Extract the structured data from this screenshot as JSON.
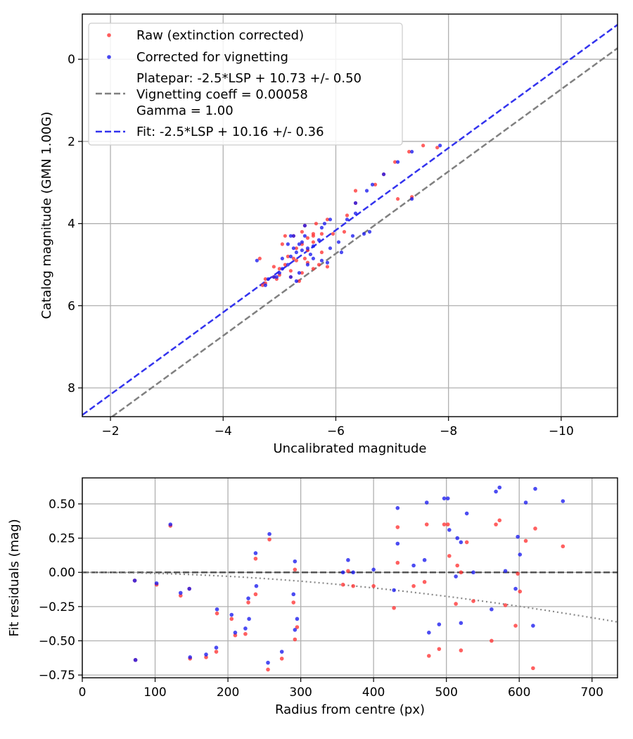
{
  "colors": {
    "raw": "#ff3333",
    "corrected": "#1a1aee",
    "platepar": "#808080",
    "fit": "#3333ee",
    "zero_line": "#555555",
    "model": "#888888"
  },
  "chart_data": [
    {
      "type": "scatter",
      "name": "calibration",
      "xlabel": "Uncalibrated magnitude",
      "ylabel": "Catalog magnitude (GMN 1.00G)",
      "xlim": [
        -1.5,
        -11.0
      ],
      "ylim": [
        8.7,
        -1.1
      ],
      "xticks": [
        -2,
        -4,
        -6,
        -8,
        -10
      ],
      "xtick_labels": [
        "−2",
        "−4",
        "−6",
        "−8",
        "−10"
      ],
      "yticks": [
        0,
        2,
        4,
        6,
        8
      ],
      "ytick_labels": [
        "0",
        "2",
        "4",
        "6",
        "8"
      ],
      "grid": true,
      "legend_position": "top-left",
      "legend": {
        "raw": "Raw (extinction corrected)",
        "corrected": "Corrected for vignetting",
        "platepar_lines": [
          "Platepar: -2.5*LSP + 10.73 +/- 0.50",
          "Vignetting coeff = 0.00058",
          "Gamma = 1.00"
        ],
        "fit": "Fit: -2.5*LSP + 10.16 +/- 0.36"
      },
      "lines": {
        "platepar_offset": 10.73,
        "fit_offset": 10.16
      },
      "series": [
        {
          "name": "Raw (extinction corrected)",
          "points": [
            [
              -7.55,
              2.1
            ],
            [
              -7.8,
              2.15
            ],
            [
              -7.3,
              2.25
            ],
            [
              -7.05,
              2.5
            ],
            [
              -6.85,
              2.8
            ],
            [
              -6.7,
              3.05
            ],
            [
              -6.35,
              3.2
            ],
            [
              -6.35,
              3.5
            ],
            [
              -7.1,
              3.4
            ],
            [
              -7.35,
              3.35
            ],
            [
              -6.2,
              3.8
            ],
            [
              -5.85,
              3.9
            ],
            [
              -5.65,
              4.0
            ],
            [
              -5.45,
              4.05
            ],
            [
              -6.15,
              4.2
            ],
            [
              -5.95,
              4.25
            ],
            [
              -5.75,
              4.25
            ],
            [
              -5.6,
              4.25
            ],
            [
              -5.4,
              4.2
            ],
            [
              -5.25,
              4.3
            ],
            [
              -5.1,
              4.3
            ],
            [
              -5.5,
              4.35
            ],
            [
              -5.6,
              4.45
            ],
            [
              -5.4,
              4.5
            ],
            [
              -5.05,
              4.5
            ],
            [
              -5.3,
              4.6
            ],
            [
              -5.5,
              4.65
            ],
            [
              -5.75,
              4.7
            ],
            [
              -5.15,
              4.8
            ],
            [
              -5.3,
              4.9
            ],
            [
              -5.5,
              4.95
            ],
            [
              -5.7,
              5.0
            ],
            [
              -5.85,
              5.05
            ],
            [
              -5.6,
              5.1
            ],
            [
              -5.1,
              5.0
            ],
            [
              -5.0,
              5.1
            ],
            [
              -4.9,
              5.05
            ],
            [
              -5.2,
              5.15
            ],
            [
              -5.4,
              5.2
            ],
            [
              -5.2,
              5.3
            ],
            [
              -4.75,
              5.35
            ],
            [
              -4.9,
              5.3
            ],
            [
              -4.95,
              5.35
            ],
            [
              -5.35,
              5.4
            ],
            [
              -4.75,
              5.45
            ],
            [
              -4.7,
              5.5
            ],
            [
              -4.65,
              4.85
            ],
            [
              -5.0,
              5.25
            ],
            [
              -5.45,
              4.85
            ],
            [
              -5.6,
              4.3
            ],
            [
              -5.25,
              4.85
            ]
          ]
        },
        {
          "name": "Corrected for vignetting",
          "points": [
            [
              -7.85,
              2.1
            ],
            [
              -7.35,
              2.25
            ],
            [
              -7.1,
              2.5
            ],
            [
              -6.85,
              2.8
            ],
            [
              -6.65,
              3.05
            ],
            [
              -6.35,
              3.5
            ],
            [
              -6.55,
              3.2
            ],
            [
              -6.35,
              3.75
            ],
            [
              -7.35,
              3.4
            ],
            [
              -6.6,
              4.2
            ],
            [
              -6.5,
              4.25
            ],
            [
              -6.3,
              4.3
            ],
            [
              -6.05,
              4.45
            ],
            [
              -5.9,
              4.6
            ],
            [
              -6.1,
              4.7
            ],
            [
              -5.85,
              4.95
            ],
            [
              -5.75,
              4.9
            ],
            [
              -5.6,
              4.85
            ],
            [
              -5.9,
              3.9
            ],
            [
              -5.75,
              4.1
            ],
            [
              -5.45,
              4.3
            ],
            [
              -5.25,
              4.3
            ],
            [
              -5.2,
              4.3
            ],
            [
              -5.15,
              4.5
            ],
            [
              -5.35,
              4.5
            ],
            [
              -5.5,
              4.6
            ],
            [
              -5.4,
              4.65
            ],
            [
              -5.3,
              4.7
            ],
            [
              -5.2,
              4.8
            ],
            [
              -5.05,
              4.85
            ],
            [
              -5.45,
              4.05
            ],
            [
              -5.15,
              5.0
            ],
            [
              -5.35,
              5.2
            ],
            [
              -5.0,
              5.2
            ],
            [
              -5.2,
              5.3
            ],
            [
              -4.95,
              5.3
            ],
            [
              -4.8,
              5.35
            ],
            [
              -4.75,
              5.5
            ],
            [
              -4.6,
              4.9
            ],
            [
              -5.3,
              5.4
            ],
            [
              -5.6,
              4.55
            ],
            [
              -5.05,
              5.1
            ],
            [
              -5.7,
              4.4
            ],
            [
              -5.5,
              5.0
            ],
            [
              -5.25,
              4.6
            ],
            [
              -6.2,
              3.9
            ],
            [
              -5.8,
              4.0
            ],
            [
              -5.55,
              4.75
            ],
            [
              -4.9,
              5.3
            ],
            [
              -5.4,
              4.45
            ]
          ]
        }
      ]
    },
    {
      "type": "scatter",
      "name": "residuals",
      "xlabel": "Radius from centre (px)",
      "ylabel": "Fit residuals (mag)",
      "xlim": [
        0,
        735
      ],
      "ylim": [
        -0.77,
        0.69
      ],
      "xticks": [
        0,
        100,
        200,
        300,
        400,
        500,
        600,
        700
      ],
      "xtick_labels": [
        "0",
        "100",
        "200",
        "300",
        "400",
        "500",
        "600",
        "700"
      ],
      "yticks": [
        0.5,
        0.25,
        0.0,
        -0.25,
        -0.5,
        -0.75
      ],
      "ytick_labels": [
        "0.50",
        "0.25",
        "0.00",
        "−0.25",
        "−0.50",
        "−0.75"
      ],
      "grid": true,
      "vignetting_coeff": 0.00058,
      "series": [
        {
          "name": "Raw (extinction corrected)",
          "points": [
            [
              72,
              -0.06
            ],
            [
              73,
              -0.64
            ],
            [
              102,
              -0.09
            ],
            [
              121,
              0.34
            ],
            [
              135,
              -0.17
            ],
            [
              147,
              -0.12
            ],
            [
              148,
              -0.63
            ],
            [
              170,
              -0.62
            ],
            [
              184,
              -0.58
            ],
            [
              185,
              -0.3
            ],
            [
              205,
              -0.34
            ],
            [
              210,
              -0.46
            ],
            [
              224,
              -0.45
            ],
            [
              228,
              -0.22
            ],
            [
              238,
              0.1
            ],
            [
              238,
              -0.16
            ],
            [
              255,
              -0.71
            ],
            [
              257,
              0.24
            ],
            [
              274,
              -0.63
            ],
            [
              290,
              -0.22
            ],
            [
              292,
              0.02
            ],
            [
              292,
              -0.49
            ],
            [
              295,
              -0.4
            ],
            [
              358,
              -0.09
            ],
            [
              365,
              0.01
            ],
            [
              372,
              -0.1
            ],
            [
              400,
              -0.1
            ],
            [
              428,
              -0.26
            ],
            [
              433,
              0.33
            ],
            [
              433,
              0.07
            ],
            [
              455,
              -0.1
            ],
            [
              470,
              -0.07
            ],
            [
              473,
              0.35
            ],
            [
              476,
              -0.61
            ],
            [
              490,
              -0.56
            ],
            [
              497,
              0.35
            ],
            [
              502,
              0.35
            ],
            [
              504,
              0.12
            ],
            [
              513,
              -0.23
            ],
            [
              515,
              0.05
            ],
            [
              520,
              -0.57
            ],
            [
              520,
              0.0
            ],
            [
              528,
              0.22
            ],
            [
              537,
              -0.21
            ],
            [
              562,
              -0.5
            ],
            [
              568,
              0.35
            ],
            [
              573,
              0.38
            ],
            [
              581,
              -0.24
            ],
            [
              595,
              -0.39
            ],
            [
              598,
              -0.01
            ],
            [
              601,
              -0.14
            ],
            [
              609,
              0.23
            ],
            [
              619,
              -0.7
            ],
            [
              622,
              0.32
            ],
            [
              660,
              0.19
            ]
          ]
        },
        {
          "name": "Corrected for vignetting",
          "points": [
            [
              72,
              -0.06
            ],
            [
              73,
              -0.64
            ],
            [
              102,
              -0.08
            ],
            [
              121,
              0.35
            ],
            [
              135,
              -0.15
            ],
            [
              147,
              -0.12
            ],
            [
              148,
              -0.62
            ],
            [
              170,
              -0.6
            ],
            [
              184,
              -0.55
            ],
            [
              185,
              -0.27
            ],
            [
              205,
              -0.31
            ],
            [
              210,
              -0.44
            ],
            [
              224,
              -0.41
            ],
            [
              228,
              -0.19
            ],
            [
              229,
              -0.34
            ],
            [
              238,
              0.14
            ],
            [
              239,
              -0.1
            ],
            [
              255,
              -0.66
            ],
            [
              257,
              0.28
            ],
            [
              274,
              -0.58
            ],
            [
              290,
              -0.16
            ],
            [
              292,
              0.08
            ],
            [
              292,
              -0.42
            ],
            [
              295,
              -0.34
            ],
            [
              358,
              0.0
            ],
            [
              365,
              0.09
            ],
            [
              372,
              0.0
            ],
            [
              400,
              0.02
            ],
            [
              428,
              -0.13
            ],
            [
              433,
              0.47
            ],
            [
              433,
              0.21
            ],
            [
              455,
              0.05
            ],
            [
              470,
              0.09
            ],
            [
              473,
              0.51
            ],
            [
              476,
              -0.44
            ],
            [
              490,
              -0.38
            ],
            [
              497,
              0.54
            ],
            [
              502,
              0.54
            ],
            [
              504,
              0.31
            ],
            [
              513,
              -0.03
            ],
            [
              515,
              0.25
            ],
            [
              520,
              -0.37
            ],
            [
              520,
              0.22
            ],
            [
              528,
              0.43
            ],
            [
              537,
              0.0
            ],
            [
              562,
              -0.27
            ],
            [
              568,
              0.59
            ],
            [
              573,
              0.62
            ],
            [
              581,
              0.01
            ],
            [
              595,
              -0.12
            ],
            [
              598,
              0.26
            ],
            [
              601,
              0.13
            ],
            [
              609,
              0.51
            ],
            [
              619,
              -0.39
            ],
            [
              622,
              0.61
            ],
            [
              660,
              0.52
            ]
          ]
        }
      ]
    }
  ]
}
